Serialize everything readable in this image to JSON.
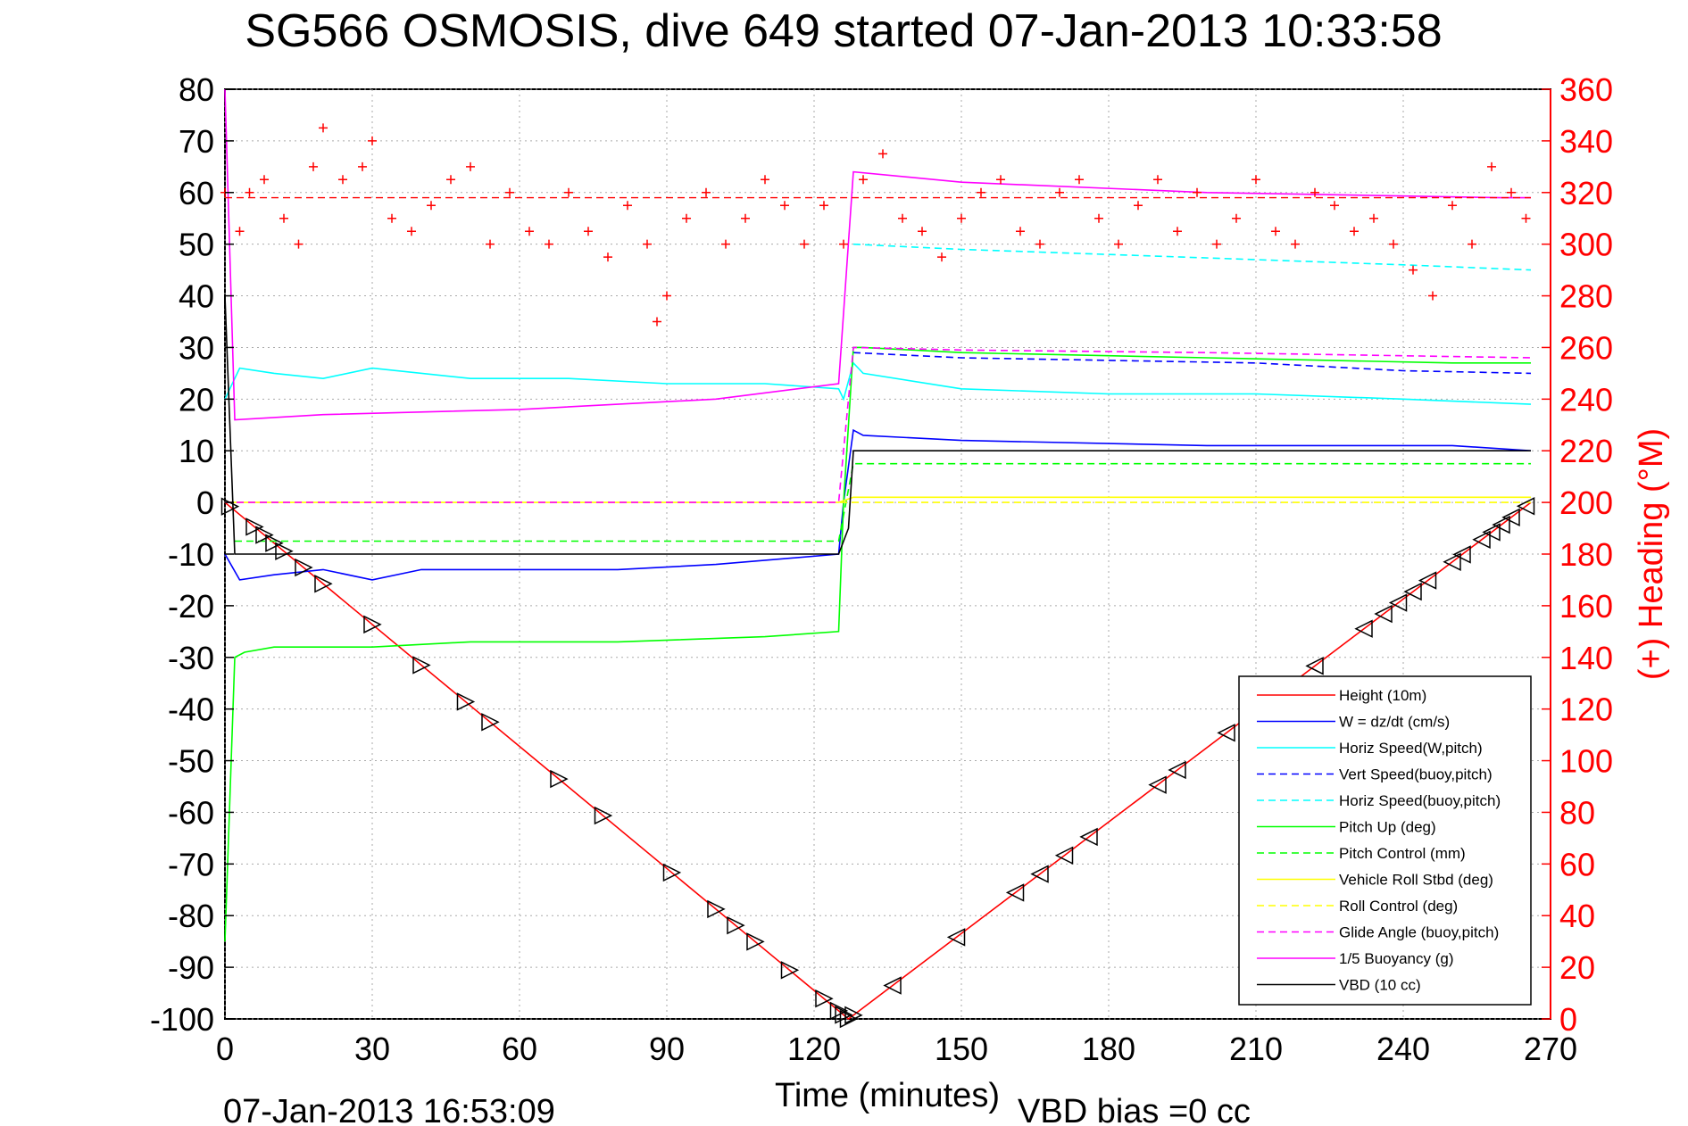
{
  "chart_data": {
    "type": "line",
    "title": "SG566 OSMOSIS, dive 649 started 07-Jan-2013 10:33:58",
    "xlabel": "Time (minutes)",
    "ylabel_right": "(+) Heading (°M)",
    "xlim": [
      0,
      270
    ],
    "ylim": [
      -100,
      80
    ],
    "ylim_right": [
      0,
      360
    ],
    "x_ticks": [
      "0",
      "30",
      "60",
      "90",
      "120",
      "150",
      "180",
      "210",
      "240",
      "270"
    ],
    "y_ticks": [
      "80",
      "70",
      "60",
      "50",
      "40",
      "30",
      "20",
      "10",
      "0",
      "-10",
      "-20",
      "-30",
      "-40",
      "-50",
      "-60",
      "-70",
      "-80",
      "-90",
      "-100"
    ],
    "y_ticks_right": [
      "360",
      "340",
      "320",
      "300",
      "280",
      "260",
      "240",
      "220",
      "200",
      "180",
      "160",
      "140",
      "120",
      "100",
      "80",
      "60",
      "40",
      "20",
      "0"
    ],
    "grid": true,
    "legend_position": "bottom-right",
    "footer_time": "07-Jan-2013 16:53:09",
    "footer_bias": "VBD bias =0 cc",
    "colors": {
      "red": "#ff0000",
      "blue": "#0000ff",
      "cyan": "#00ffff",
      "green": "#00ff00",
      "yellow": "#ffff00",
      "magenta": "#ff00ff",
      "black": "#000000",
      "grid": "#aaaaaa"
    },
    "series": [
      {
        "name": "Height (10m)",
        "color": "#ff0000",
        "style": "solid",
        "x": [
          0,
          127,
          266
        ],
        "y": [
          0,
          -100,
          0
        ]
      },
      {
        "name": "W = dz/dt (cm/s)",
        "color": "#0000ff",
        "style": "solid",
        "x": [
          0,
          3,
          10,
          20,
          30,
          40,
          60,
          80,
          100,
          125,
          126,
          128,
          130,
          150,
          200,
          250,
          266
        ],
        "y": [
          -10,
          -15,
          -14,
          -13,
          -15,
          -13,
          -13,
          -13,
          -12,
          -10,
          0,
          14,
          13,
          12,
          11,
          11,
          10
        ]
      },
      {
        "name": "Horiz Speed(W,pitch)",
        "color": "#00ffff",
        "style": "solid",
        "x": [
          0,
          3,
          10,
          20,
          30,
          50,
          70,
          90,
          110,
          125,
          126,
          128,
          130,
          150,
          180,
          210,
          240,
          266
        ],
        "y": [
          20,
          26,
          25,
          24,
          26,
          24,
          24,
          23,
          23,
          22,
          20,
          27,
          25,
          22,
          21,
          21,
          20,
          19
        ]
      },
      {
        "name": "Vert Speed(buoy,pitch)",
        "color": "#0000ff",
        "style": "dashed",
        "x": [
          128,
          150,
          180,
          210,
          240,
          266
        ],
        "y": [
          29,
          28,
          27.5,
          27,
          25.5,
          25
        ]
      },
      {
        "name": "Horiz Speed(buoy,pitch)",
        "color": "#00ffff",
        "style": "dashed",
        "x": [
          128,
          150,
          180,
          210,
          240,
          266
        ],
        "y": [
          50,
          49,
          48,
          47,
          46,
          45
        ]
      },
      {
        "name": "Pitch Up (deg)",
        "color": "#00ff00",
        "style": "solid",
        "x": [
          0,
          2,
          4,
          10,
          30,
          50,
          80,
          110,
          125,
          126,
          128,
          130,
          150,
          200,
          250,
          266
        ],
        "y": [
          -85,
          -30,
          -29,
          -28,
          -28,
          -27,
          -27,
          -26,
          -25,
          0,
          30,
          30,
          29,
          28,
          27,
          27
        ]
      },
      {
        "name": "Pitch Control (mm)",
        "color": "#00ff00",
        "style": "dashed",
        "x": [
          2,
          125,
          128,
          266
        ],
        "y": [
          -7.5,
          -7.5,
          7.5,
          7.5
        ]
      },
      {
        "name": "Vehicle Roll Stbd (deg)",
        "color": "#ffff00",
        "style": "solid",
        "x": [
          0,
          125,
          128,
          266
        ],
        "y": [
          0,
          0,
          1,
          1
        ]
      },
      {
        "name": "Roll Control (deg)",
        "color": "#ffff00",
        "style": "dashed",
        "x": [
          0,
          266
        ],
        "y": [
          0,
          0
        ]
      },
      {
        "name": "Glide Angle (buoy,pitch)",
        "color": "#ff00ff",
        "style": "dashed",
        "x": [
          0,
          125,
          128,
          150,
          200,
          266
        ],
        "y": [
          0,
          0,
          30,
          29.5,
          29,
          28
        ]
      },
      {
        "name": "1/5 Buoyancy (g)",
        "color": "#ff00ff",
        "style": "solid",
        "x": [
          0,
          2,
          20,
          60,
          100,
          125,
          128,
          150,
          200,
          260,
          266
        ],
        "y": [
          80,
          16,
          17,
          18,
          20,
          23,
          64,
          62,
          60,
          59,
          59
        ]
      },
      {
        "name": "VBD (10 cc)",
        "color": "#000000",
        "style": "solid",
        "x": [
          0,
          2,
          125,
          127,
          128,
          266
        ],
        "y": [
          40,
          -10,
          -10,
          -5,
          10,
          10
        ]
      }
    ],
    "heading": {
      "color": "#ff0000",
      "marker": "+",
      "mean": 318,
      "x": [
        0,
        3,
        5,
        8,
        12,
        15,
        18,
        20,
        24,
        28,
        30,
        34,
        38,
        42,
        46,
        50,
        54,
        58,
        62,
        66,
        70,
        74,
        78,
        82,
        86,
        88,
        90,
        94,
        98,
        102,
        106,
        110,
        114,
        118,
        122,
        126,
        130,
        134,
        138,
        142,
        146,
        150,
        154,
        158,
        162,
        166,
        170,
        174,
        178,
        182,
        186,
        190,
        194,
        198,
        202,
        206,
        210,
        214,
        218,
        222,
        226,
        230,
        234,
        238,
        242,
        246,
        250,
        254,
        258,
        262,
        265
      ],
      "y": [
        320,
        305,
        320,
        325,
        310,
        300,
        330,
        345,
        325,
        330,
        340,
        310,
        305,
        315,
        325,
        330,
        300,
        320,
        305,
        300,
        320,
        305,
        295,
        315,
        300,
        270,
        280,
        310,
        320,
        300,
        310,
        325,
        315,
        300,
        315,
        300,
        325,
        335,
        310,
        305,
        295,
        310,
        320,
        325,
        305,
        300,
        320,
        325,
        310,
        300,
        315,
        325,
        305,
        320,
        300,
        310,
        325,
        305,
        300,
        320,
        315,
        305,
        310,
        300,
        290,
        280,
        315,
        300,
        330,
        320,
        310
      ]
    },
    "descent_markers_x": [
      1,
      6,
      8,
      10,
      12,
      16,
      20,
      30,
      40,
      49,
      54,
      68,
      77,
      91,
      100,
      104,
      108,
      115,
      122,
      125,
      126,
      127,
      128
    ],
    "ascent_markers_x": [
      136,
      149,
      161,
      166,
      171,
      176,
      190,
      194,
      204,
      222,
      232,
      236,
      239,
      242,
      245,
      250,
      252,
      256,
      258,
      260,
      262,
      265
    ]
  }
}
